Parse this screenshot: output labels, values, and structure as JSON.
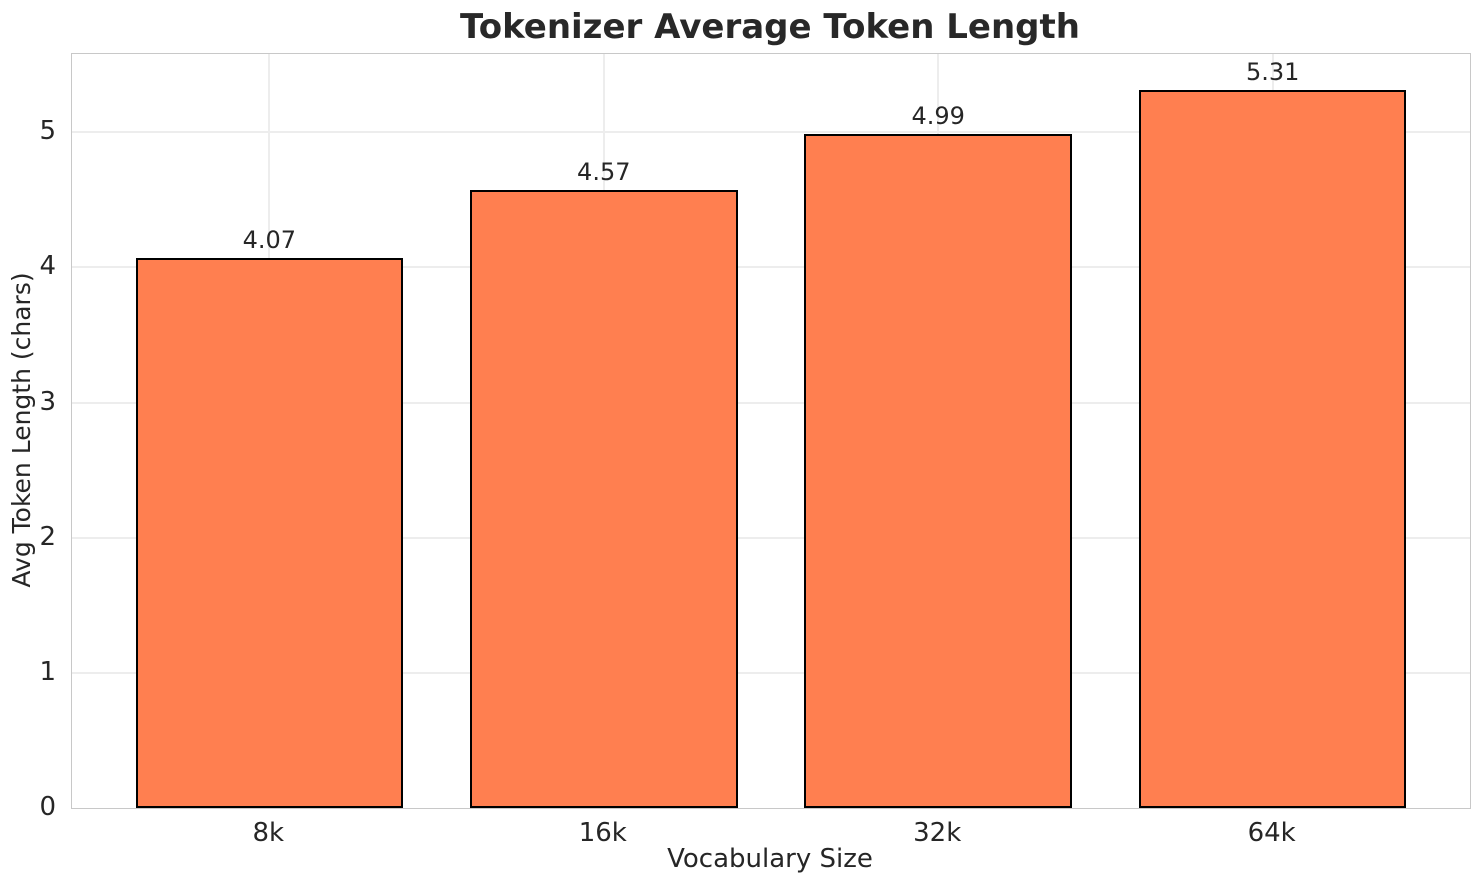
{
  "chart_data": {
    "type": "bar",
    "title": "Tokenizer Average Token Length",
    "xlabel": "Vocabulary Size",
    "ylabel": "Avg Token Length (chars)",
    "categories": [
      "8k",
      "16k",
      "32k",
      "64k"
    ],
    "values": [
      4.07,
      4.57,
      4.99,
      5.31
    ],
    "value_labels": [
      "4.07",
      "4.57",
      "4.99",
      "5.31"
    ],
    "yticks": [
      0,
      1,
      2,
      3,
      4,
      5
    ],
    "ylim": [
      0,
      5.58
    ],
    "grid": true,
    "legend_position": "none",
    "bar_color": "#ff7f50",
    "bar_edge_color": "#000000"
  }
}
